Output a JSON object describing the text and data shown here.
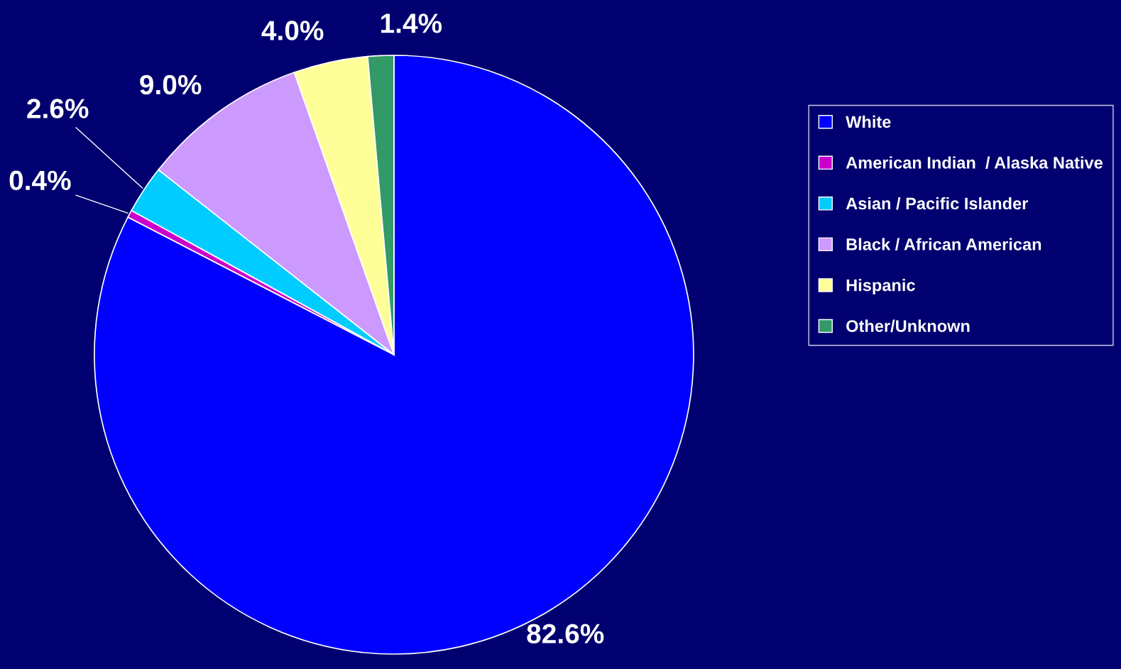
{
  "chart_data": {
    "type": "pie",
    "categories": [
      "White",
      "American Indian  / Alaska Native",
      "Asian / Pacific Islander",
      "Black / African American",
      "Hispanic",
      "Other/Unknown"
    ],
    "values": [
      82.6,
      0.4,
      2.6,
      9.0,
      4.0,
      1.4
    ],
    "colors": [
      "#0000ff",
      "#cc00cc",
      "#00ccff",
      "#cc99ff",
      "#ffff99",
      "#339966"
    ],
    "value_labels": [
      "82.6%",
      "0.4%",
      "2.6%",
      "9.0%",
      "4.0%",
      "1.4%"
    ],
    "legend": "right"
  }
}
